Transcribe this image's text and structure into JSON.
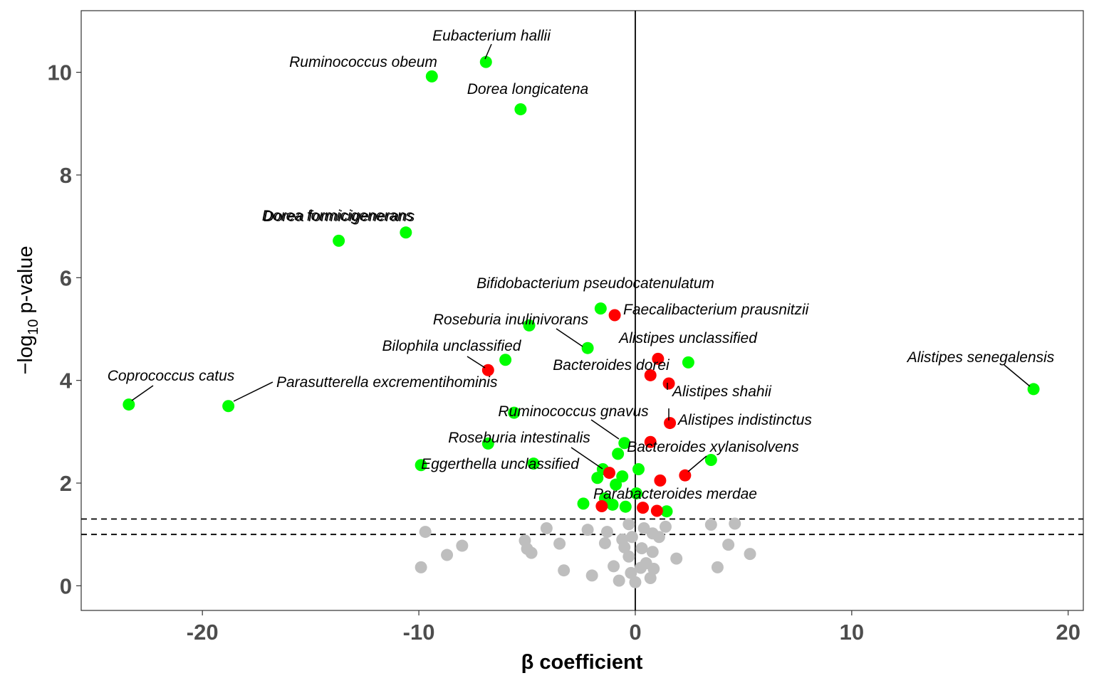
{
  "chart_data": {
    "type": "scatter",
    "title": "",
    "xlabel": "β coefficient",
    "ylabel_main": "−log",
    "ylabel_sub": "10",
    "ylabel_tail": " p-value",
    "xlim": [
      -25.6,
      20.7
    ],
    "ylim": [
      -0.48,
      11.2
    ],
    "x_ticks": [
      -20,
      -10,
      0,
      10,
      20
    ],
    "x_tick_labels": [
      "-20",
      "-10",
      "0",
      "10",
      "20"
    ],
    "y_ticks": [
      0,
      2,
      4,
      6,
      8,
      10
    ],
    "y_tick_labels": [
      "0",
      "2",
      "4",
      "6",
      "8",
      "10"
    ],
    "grid": false,
    "vertical_reference_x": 0,
    "horizontal_thresholds": [
      1.0,
      1.3
    ],
    "colors": {
      "significant_negative": "#00ff00",
      "significant_positive": "#ff0000",
      "not_significant": "#bebebe",
      "axis": "#000000",
      "tick_text": "#4d4d4d"
    },
    "labeled_points": [
      {
        "label": "Eubacterium hallii",
        "x": -6.9,
        "y": 10.2,
        "color": "green"
      },
      {
        "label": "Ruminococcus obeum",
        "x": -9.4,
        "y": 9.92,
        "color": "green"
      },
      {
        "label": "Dorea longicatena",
        "x": -5.3,
        "y": 9.28,
        "color": "green"
      },
      {
        "label": "Dorea formicigenerans",
        "x": -13.7,
        "y": 6.72,
        "color": "green"
      },
      {
        "label": "Dorea formicigenerans",
        "x": -10.6,
        "y": 6.88,
        "color": "green"
      },
      {
        "label": "Bifidobacterium pseudocatenulatum",
        "x": -1.6,
        "y": 5.4,
        "color": "green"
      },
      {
        "label": "Faecalibacterium prausnitzii",
        "x": -0.95,
        "y": 5.27,
        "color": "red"
      },
      {
        "label": "Roseburia inulinivorans",
        "x": -2.2,
        "y": 4.63,
        "color": "green"
      },
      {
        "label": "Alistipes unclassified",
        "x": 1.05,
        "y": 4.42,
        "color": "red"
      },
      {
        "label": "Bilophila unclassified",
        "x": -6.8,
        "y": 4.2,
        "color": "red"
      },
      {
        "label": "Bacteroides dorei",
        "x": 0.7,
        "y": 4.1,
        "color": "red"
      },
      {
        "label": "Alistipes senegalensis",
        "x": 18.4,
        "y": 3.83,
        "color": "green"
      },
      {
        "label": "Coprococcus catus",
        "x": -23.4,
        "y": 3.53,
        "color": "green"
      },
      {
        "label": "Parasutterella excrementihominis",
        "x": -18.8,
        "y": 3.5,
        "color": "green"
      },
      {
        "label": "Alistipes shahii",
        "x": 1.55,
        "y": 3.94,
        "color": "red"
      },
      {
        "label": "Ruminococcus gnavus",
        "x": -0.5,
        "y": 2.78,
        "color": "green"
      },
      {
        "label": "Alistipes indistinctus",
        "x": 1.6,
        "y": 3.17,
        "color": "red"
      },
      {
        "label": "Roseburia intestinalis",
        "x": -1.2,
        "y": 2.2,
        "color": "red"
      },
      {
        "label": "Bacteroides xylanisolvens",
        "x": 3.5,
        "y": 2.45,
        "color": "green"
      },
      {
        "label": "Eggerthella unclassified",
        "x": -9.9,
        "y": 2.35,
        "color": "green"
      },
      {
        "label": "Parabacteroides merdae",
        "x": 1.0,
        "y": 1.46,
        "color": "red"
      }
    ],
    "other_significant_points": [
      {
        "x": -4.9,
        "y": 5.07,
        "color": "green"
      },
      {
        "x": -6.0,
        "y": 4.4,
        "color": "green"
      },
      {
        "x": 2.45,
        "y": 4.35,
        "color": "green"
      },
      {
        "x": -5.6,
        "y": 3.37,
        "color": "green"
      },
      {
        "x": -6.8,
        "y": 2.77,
        "color": "green"
      },
      {
        "x": 0.7,
        "y": 2.8,
        "color": "red"
      },
      {
        "x": -0.8,
        "y": 2.57,
        "color": "green"
      },
      {
        "x": -4.7,
        "y": 2.38,
        "color": "green"
      },
      {
        "x": -1.5,
        "y": 2.27,
        "color": "green"
      },
      {
        "x": 0.15,
        "y": 2.27,
        "color": "green"
      },
      {
        "x": -0.6,
        "y": 2.13,
        "color": "green"
      },
      {
        "x": -1.75,
        "y": 2.1,
        "color": "green"
      },
      {
        "x": 2.3,
        "y": 2.15,
        "color": "red"
      },
      {
        "x": 1.15,
        "y": 2.05,
        "color": "red"
      },
      {
        "x": -0.9,
        "y": 1.97,
        "color": "green"
      },
      {
        "x": 0.05,
        "y": 1.8,
        "color": "green"
      },
      {
        "x": -1.4,
        "y": 1.7,
        "color": "green"
      },
      {
        "x": -2.4,
        "y": 1.6,
        "color": "green"
      },
      {
        "x": -1.05,
        "y": 1.58,
        "color": "green"
      },
      {
        "x": -1.55,
        "y": 1.55,
        "color": "red"
      },
      {
        "x": -0.45,
        "y": 1.54,
        "color": "green"
      },
      {
        "x": 0.35,
        "y": 1.52,
        "color": "red"
      },
      {
        "x": 1.45,
        "y": 1.45,
        "color": "green"
      }
    ],
    "nonsignificant_points": [
      {
        "x": -9.7,
        "y": 1.05
      },
      {
        "x": -4.1,
        "y": 1.12
      },
      {
        "x": -2.2,
        "y": 1.09
      },
      {
        "x": -1.3,
        "y": 1.05
      },
      {
        "x": -0.3,
        "y": 1.2
      },
      {
        "x": 0.4,
        "y": 1.12
      },
      {
        "x": 1.4,
        "y": 1.15
      },
      {
        "x": 3.5,
        "y": 1.19
      },
      {
        "x": 4.6,
        "y": 1.21
      },
      {
        "x": 0.8,
        "y": 1.02
      },
      {
        "x": 1.1,
        "y": 0.95
      },
      {
        "x": -5.1,
        "y": 0.88
      },
      {
        "x": -8.0,
        "y": 0.78
      },
      {
        "x": -3.5,
        "y": 0.82
      },
      {
        "x": -1.4,
        "y": 0.83
      },
      {
        "x": -0.6,
        "y": 0.9
      },
      {
        "x": 0.3,
        "y": 0.73
      },
      {
        "x": 0.8,
        "y": 0.66
      },
      {
        "x": 4.3,
        "y": 0.8
      },
      {
        "x": -5.0,
        "y": 0.72
      },
      {
        "x": -4.8,
        "y": 0.64
      },
      {
        "x": -8.7,
        "y": 0.6
      },
      {
        "x": 5.3,
        "y": 0.62
      },
      {
        "x": 1.9,
        "y": 0.53
      },
      {
        "x": -0.3,
        "y": 0.57
      },
      {
        "x": -9.9,
        "y": 0.36
      },
      {
        "x": -3.3,
        "y": 0.3
      },
      {
        "x": -2.0,
        "y": 0.2
      },
      {
        "x": -1.0,
        "y": 0.38
      },
      {
        "x": 0.25,
        "y": 0.35
      },
      {
        "x": 0.85,
        "y": 0.33
      },
      {
        "x": 3.8,
        "y": 0.36
      },
      {
        "x": -0.75,
        "y": 0.1
      },
      {
        "x": 0.0,
        "y": 0.07
      },
      {
        "x": 0.7,
        "y": 0.15
      },
      {
        "x": -0.2,
        "y": 0.25
      },
      {
        "x": -0.5,
        "y": 0.75
      },
      {
        "x": 0.5,
        "y": 0.44
      },
      {
        "x": -0.15,
        "y": 0.95
      }
    ]
  }
}
